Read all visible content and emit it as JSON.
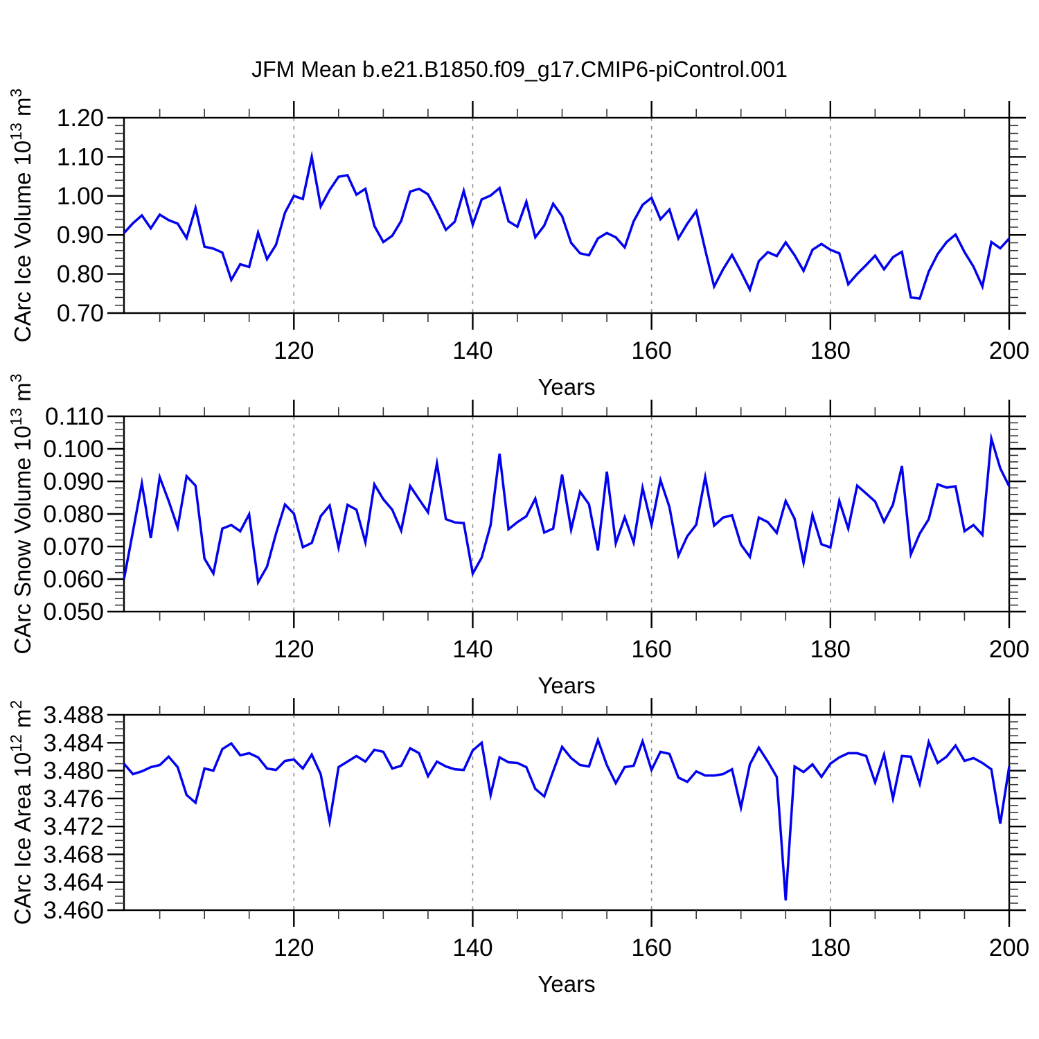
{
  "title": "JFM Mean b.e21.B1850.f09_g17.CMIP6-piControl.001",
  "line_color": "#0202ee",
  "grid_color": "#909090",
  "years": [
    101,
    102,
    103,
    104,
    105,
    106,
    107,
    108,
    109,
    110,
    111,
    112,
    113,
    114,
    115,
    116,
    117,
    118,
    119,
    120,
    121,
    122,
    123,
    124,
    125,
    126,
    127,
    128,
    129,
    130,
    131,
    132,
    133,
    134,
    135,
    136,
    137,
    138,
    139,
    140,
    141,
    142,
    143,
    144,
    145,
    146,
    147,
    148,
    149,
    150,
    151,
    152,
    153,
    154,
    155,
    156,
    157,
    158,
    159,
    160,
    161,
    162,
    163,
    164,
    165,
    166,
    167,
    168,
    169,
    170,
    171,
    172,
    173,
    174,
    175,
    176,
    177,
    178,
    179,
    180,
    181,
    182,
    183,
    184,
    185,
    186,
    187,
    188,
    189,
    190,
    191,
    192,
    193,
    194,
    195,
    196,
    197,
    198,
    199,
    200
  ],
  "chart_data": [
    {
      "type": "line",
      "name": "ice-volume",
      "ylabel": "CArc Ice Volume 10^13 m^3",
      "ylabel_parts": [
        {
          "t": "CArc Ice Volume 10"
        },
        {
          "t": "13",
          "sup": true
        },
        {
          "t": " m"
        },
        {
          "t": "3",
          "sup": true
        }
      ],
      "xlabel": "Years",
      "xlim": [
        101,
        200
      ],
      "ylim": [
        0.7,
        1.2
      ],
      "xticks": [
        120,
        140,
        160,
        180,
        200
      ],
      "xtick_minor_step": 5,
      "ytick_labels": [
        "0.70",
        "0.80",
        "0.90",
        "1.00",
        "1.10",
        "1.20"
      ],
      "ytick_values": [
        0.7,
        0.8,
        0.9,
        1.0,
        1.1,
        1.2
      ],
      "ytick_minor_step": 0.02,
      "grid_x": [
        120,
        140,
        160,
        180
      ],
      "values": [
        0.905,
        0.93,
        0.95,
        0.917,
        0.952,
        0.938,
        0.929,
        0.892,
        0.969,
        0.87,
        0.865,
        0.855,
        0.785,
        0.825,
        0.818,
        0.906,
        0.838,
        0.875,
        0.957,
        1.0,
        0.992,
        1.1,
        0.973,
        1.015,
        1.049,
        1.053,
        1.003,
        1.018,
        0.923,
        0.882,
        0.898,
        0.936,
        1.011,
        1.018,
        1.004,
        0.961,
        0.913,
        0.934,
        1.013,
        0.926,
        0.991,
        1.001,
        1.02,
        0.935,
        0.921,
        0.985,
        0.894,
        0.924,
        0.98,
        0.948,
        0.88,
        0.853,
        0.848,
        0.891,
        0.905,
        0.894,
        0.868,
        0.935,
        0.977,
        0.995,
        0.94,
        0.965,
        0.891,
        0.929,
        0.961,
        0.862,
        0.768,
        0.812,
        0.849,
        0.806,
        0.76,
        0.833,
        0.856,
        0.846,
        0.881,
        0.848,
        0.808,
        0.862,
        0.877,
        0.862,
        0.853,
        0.774,
        0.8,
        0.823,
        0.847,
        0.812,
        0.843,
        0.857,
        0.74,
        0.737,
        0.806,
        0.851,
        0.882,
        0.901,
        0.856,
        0.819,
        0.768,
        0.882,
        0.866,
        0.891
      ]
    },
    {
      "type": "line",
      "name": "snow-volume",
      "ylabel": "CArc Snow Volume 10^13 m^3",
      "ylabel_parts": [
        {
          "t": "CArc Snow Volume 10"
        },
        {
          "t": "13",
          "sup": true
        },
        {
          "t": " m"
        },
        {
          "t": "3",
          "sup": true
        }
      ],
      "xlabel": "Years",
      "xlim": [
        101,
        200
      ],
      "ylim": [
        0.05,
        0.11
      ],
      "xticks": [
        120,
        140,
        160,
        180,
        200
      ],
      "xtick_minor_step": 5,
      "ytick_labels": [
        "0.050",
        "0.060",
        "0.070",
        "0.080",
        "0.090",
        "0.100",
        "0.110"
      ],
      "ytick_values": [
        0.05,
        0.06,
        0.07,
        0.08,
        0.09,
        0.1,
        0.11
      ],
      "ytick_minor_step": 0.002,
      "grid_x": [
        120,
        140,
        160,
        180
      ],
      "values": [
        0.06,
        0.0746,
        0.0894,
        0.0726,
        0.0913,
        0.084,
        0.0758,
        0.0916,
        0.0887,
        0.0663,
        0.0617,
        0.0755,
        0.0766,
        0.0747,
        0.0799,
        0.059,
        0.0638,
        0.074,
        0.0829,
        0.0801,
        0.0698,
        0.0711,
        0.0793,
        0.0826,
        0.0697,
        0.0828,
        0.0813,
        0.0713,
        0.0891,
        0.0845,
        0.0813,
        0.0749,
        0.0886,
        0.0845,
        0.0805,
        0.0955,
        0.0784,
        0.0774,
        0.0772,
        0.0617,
        0.0666,
        0.0766,
        0.0985,
        0.0753,
        0.0775,
        0.0793,
        0.0847,
        0.0743,
        0.0755,
        0.0921,
        0.0752,
        0.0868,
        0.083,
        0.0688,
        0.093,
        0.071,
        0.079,
        0.0712,
        0.088,
        0.0766,
        0.0904,
        0.0821,
        0.0672,
        0.0732,
        0.0767,
        0.0913,
        0.0764,
        0.0789,
        0.0796,
        0.0706,
        0.0668,
        0.0789,
        0.0775,
        0.0742,
        0.084,
        0.0785,
        0.065,
        0.0797,
        0.0707,
        0.0697,
        0.084,
        0.0755,
        0.0887,
        0.0863,
        0.0838,
        0.0776,
        0.0829,
        0.0947,
        0.0676,
        0.074,
        0.0784,
        0.0891,
        0.0881,
        0.0885,
        0.0747,
        0.0766,
        0.0736,
        0.1032,
        0.094,
        0.0885
      ]
    },
    {
      "type": "line",
      "name": "ice-area",
      "ylabel": "CArc Ice Area 10^12 m^2",
      "ylabel_parts": [
        {
          "t": "CArc Ice Area 10"
        },
        {
          "t": "12",
          "sup": true
        },
        {
          "t": " m"
        },
        {
          "t": "2",
          "sup": true
        }
      ],
      "xlabel": "Years",
      "xlim": [
        101,
        200
      ],
      "ylim": [
        3.46,
        3.488
      ],
      "xticks": [
        120,
        140,
        160,
        180,
        200
      ],
      "xtick_minor_step": 5,
      "ytick_labels": [
        "3.460",
        "3.464",
        "3.468",
        "3.472",
        "3.476",
        "3.480",
        "3.484",
        "3.488"
      ],
      "ytick_values": [
        3.46,
        3.464,
        3.468,
        3.472,
        3.476,
        3.48,
        3.484,
        3.488
      ],
      "ytick_minor_step": 0.001,
      "grid_x": [
        120,
        140,
        160,
        180
      ],
      "values": [
        3.481,
        3.4795,
        3.4799,
        3.4805,
        3.4808,
        3.482,
        3.4805,
        3.4765,
        3.4754,
        3.4803,
        3.48,
        3.4831,
        3.4839,
        3.4822,
        3.4825,
        3.4819,
        3.4803,
        3.4801,
        3.4814,
        3.4816,
        3.4803,
        3.4823,
        3.4795,
        3.4727,
        3.4805,
        3.4813,
        3.4821,
        3.4813,
        3.483,
        3.4827,
        3.4803,
        3.4807,
        3.4832,
        3.4825,
        3.4792,
        3.4813,
        3.4806,
        3.4802,
        3.4801,
        3.4829,
        3.484,
        3.4765,
        3.4819,
        3.4812,
        3.4811,
        3.4805,
        3.4774,
        3.4763,
        3.4799,
        3.4834,
        3.4818,
        3.4808,
        3.4806,
        3.4844,
        3.4808,
        3.4782,
        3.4805,
        3.4807,
        3.4842,
        3.4801,
        3.4827,
        3.4824,
        3.479,
        3.4784,
        3.4799,
        3.4793,
        3.4793,
        3.4795,
        3.4802,
        3.4747,
        3.4809,
        3.4833,
        3.4813,
        3.4791,
        3.4614,
        3.4806,
        3.4798,
        3.4809,
        3.4791,
        3.481,
        3.4819,
        3.4825,
        3.4825,
        3.4821,
        3.4783,
        3.4823,
        3.476,
        3.4821,
        3.482,
        3.4781,
        3.4841,
        3.4811,
        3.482,
        3.4836,
        3.4814,
        3.4818,
        3.4811,
        3.4802,
        3.4724,
        3.4806
      ]
    }
  ]
}
